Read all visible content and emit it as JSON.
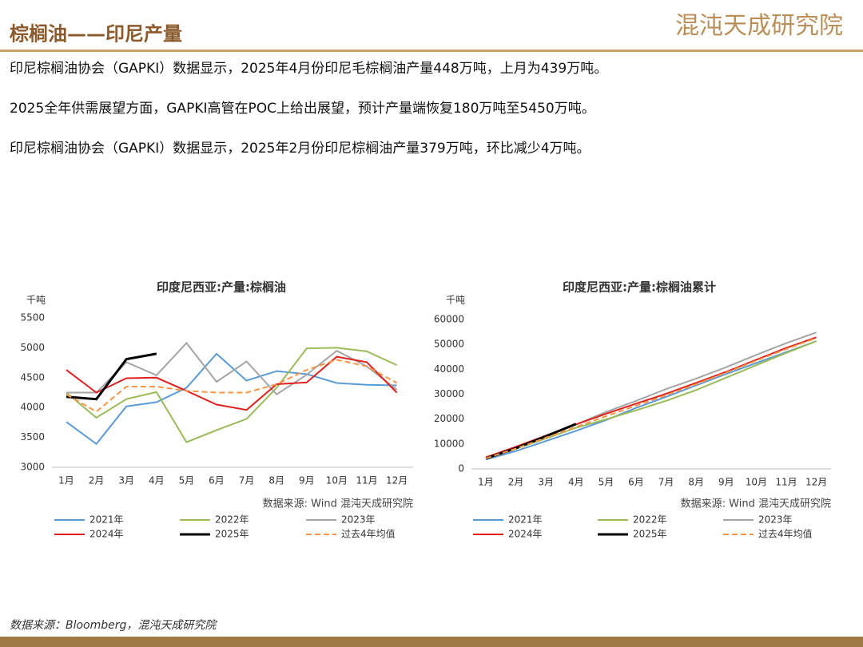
{
  "header": {
    "title": "棕榈油——印尼产量",
    "logo": "混沌天成研究院"
  },
  "paragraphs": [
    "印尼棕榈油协会（GAPKI）数据显示，2025年4月份印尼毛棕榈油产量448万吨，上月为439万吨。",
    "2025全年供需展望方面，GAPKI高管在POC上给出展望，预计产量端恢复180万吨至5450万吨。",
    "印尼棕榈油协会（GAPKI）数据显示，2025年2月份印尼棕榈油产量379万吨，环比减少4万吨。"
  ],
  "chart_data": [
    {
      "type": "line",
      "title": "印度尼西亚:产量:棕榈油",
      "y_unit": "千吨",
      "source": "数据来源: Wind  混沌天成研究院",
      "categories": [
        "1月",
        "2月",
        "3月",
        "4月",
        "5月",
        "6月",
        "7月",
        "8月",
        "9月",
        "10月",
        "11月",
        "12月"
      ],
      "ylim": [
        3000,
        5500
      ],
      "yticks": [
        3000,
        3500,
        4000,
        4500,
        5000,
        5500
      ],
      "series": [
        {
          "name": "2021年",
          "color": "#5b9bd5",
          "values": [
            3760,
            3390,
            4020,
            4090,
            4330,
            4900,
            4450,
            4610,
            4560,
            4410,
            4380,
            4370
          ]
        },
        {
          "name": "2022年",
          "color": "#9bbb59",
          "values": [
            4250,
            3830,
            4140,
            4260,
            3420,
            3620,
            3810,
            4330,
            4990,
            5000,
            4940,
            4710
          ]
        },
        {
          "name": "2023年",
          "color": "#a5a5a5",
          "values": [
            4250,
            4250,
            4760,
            4540,
            5080,
            4430,
            4770,
            4220,
            4550,
            4950,
            4690,
            4300
          ]
        },
        {
          "name": "2024年",
          "color": "#e0201f",
          "values": [
            4630,
            4250,
            4490,
            4500,
            4280,
            4050,
            3960,
            4390,
            4420,
            4850,
            4760,
            4250
          ]
        },
        {
          "name": "2025年",
          "color": "#000000",
          "values": [
            4180,
            4140,
            4810,
            4900,
            null,
            null,
            null,
            null,
            null,
            null,
            null,
            null
          ]
        },
        {
          "name": "过去4年均值",
          "color": "#f79646",
          "dashed": true,
          "values": [
            4220,
            3930,
            4350,
            4350,
            4280,
            4250,
            4250,
            4390,
            4630,
            4800,
            4690,
            4410
          ]
        }
      ]
    },
    {
      "type": "line",
      "title": "印度尼西亚:产量:棕榈油累计",
      "y_unit": "千吨",
      "source": "数据来源: Wind  混沌天成研究院",
      "categories": [
        "1月",
        "2月",
        "3月",
        "4月",
        "5月",
        "6月",
        "7月",
        "8月",
        "9月",
        "10月",
        "11月",
        "12月"
      ],
      "ylim": [
        0,
        60000
      ],
      "yticks": [
        0,
        10000,
        20000,
        30000,
        40000,
        50000,
        60000
      ],
      "series": [
        {
          "name": "2021年",
          "color": "#5b9bd5",
          "values": [
            3760,
            7150,
            11170,
            15260,
            19590,
            24490,
            28940,
            33550,
            38110,
            42520,
            46900,
            51270
          ]
        },
        {
          "name": "2022年",
          "color": "#9bbb59",
          "values": [
            4250,
            8080,
            12220,
            16480,
            19900,
            23520,
            27330,
            31660,
            36650,
            41650,
            46590,
            51300
          ]
        },
        {
          "name": "2023年",
          "color": "#a5a5a5",
          "values": [
            4250,
            8500,
            13260,
            17800,
            22880,
            27310,
            32080,
            36300,
            40850,
            45800,
            50490,
            54790
          ]
        },
        {
          "name": "2024年",
          "color": "#e0201f",
          "values": [
            4630,
            8880,
            13370,
            17870,
            22150,
            26200,
            30160,
            34550,
            38970,
            43820,
            48580,
            52830
          ]
        },
        {
          "name": "2025年",
          "color": "#000000",
          "values": [
            4180,
            8320,
            13130,
            18030,
            null,
            null,
            null,
            null,
            null,
            null,
            null,
            null
          ]
        },
        {
          "name": "过去4年均值",
          "color": "#f79646",
          "dashed": true,
          "values": [
            4220,
            8150,
            12500,
            16850,
            21130,
            25380,
            29630,
            34020,
            38650,
            43450,
            48140,
            52550
          ]
        }
      ]
    }
  ],
  "footer": "数据来源：Bloomberg，混沌天成研究院"
}
